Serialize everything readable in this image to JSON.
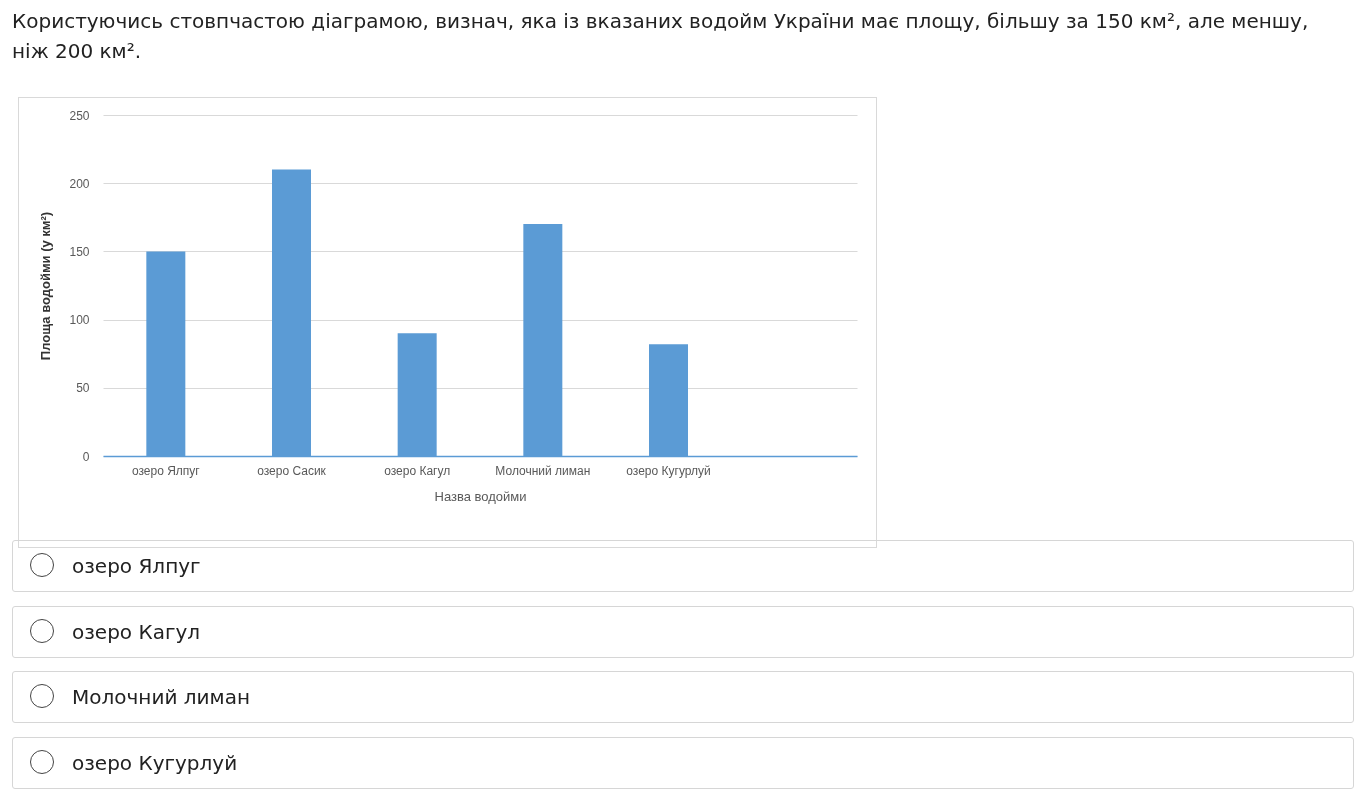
{
  "chart_data": {
    "type": "bar",
    "title": "Користуючись стовпчастою діаграмою, визнач, яка із вказаних водойм України має площу, більшу за 150 км², але меншу, ніж 200 км².",
    "xlabel": "Назва водойми",
    "ylabel": "Площа водойми (у км²)",
    "categories": [
      "озеро Ялпуг",
      "озеро Сасик",
      "озеро Кагул",
      "Молочний лиман",
      "озеро Кугурлуй",
      null
    ],
    "values": [
      150,
      210,
      90,
      170,
      82,
      null
    ],
    "color": "#5b9bd5",
    "ylim": [
      0,
      250
    ],
    "yticks": [
      0,
      50,
      100,
      150,
      200,
      250
    ],
    "grid": "y",
    "annotations": [
      "озеро Ялпуг",
      "озеро Кагул",
      "Молочний лиман",
      "озеро Кугурлуй"
    ]
  }
}
